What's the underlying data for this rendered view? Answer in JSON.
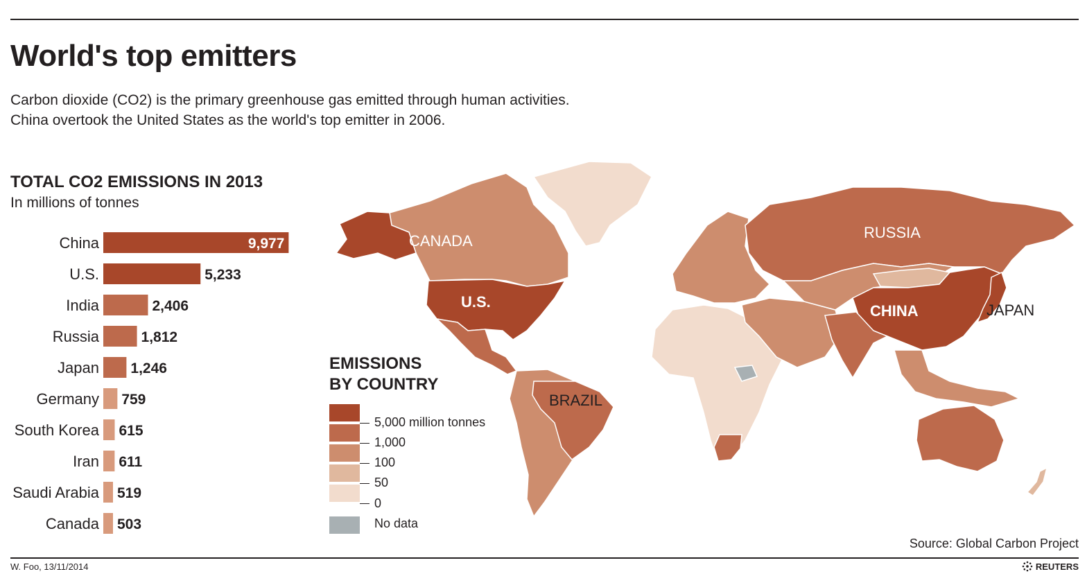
{
  "header": {
    "title": "World's top emitters",
    "subtitle_line1": "Carbon dioxide (CO2) is the primary greenhouse gas emitted through human activities.",
    "subtitle_line2": "China overtook the United States as the world's top emitter in 2006."
  },
  "chart_data": [
    {
      "type": "bar",
      "orientation": "horizontal",
      "title": "TOTAL CO2 EMISSIONS IN 2013",
      "subtitle": "In millions of tonnes",
      "categories": [
        "China",
        "U.S.",
        "India",
        "Russia",
        "Japan",
        "Germany",
        "South Korea",
        "Iran",
        "Saudi Arabia",
        "Canada"
      ],
      "values": [
        9977,
        5233,
        2406,
        1812,
        1246,
        759,
        615,
        611,
        519,
        503
      ],
      "value_labels": [
        "9,977",
        "5,233",
        "2,406",
        "1,812",
        "1,246",
        "759",
        "615",
        "611",
        "519",
        "503"
      ],
      "xlim": [
        0,
        10000
      ],
      "grid": false
    }
  ],
  "map": {
    "legend_title_line1": "EMISSIONS",
    "legend_title_line2": "BY COUNTRY",
    "legend": [
      {
        "label": "5,000 million tonnes",
        "color": "#a8472a"
      },
      {
        "label": "1,000",
        "color": "#bd6a4c"
      },
      {
        "label": "100",
        "color": "#cd8d6e"
      },
      {
        "label": "50",
        "color": "#e0b89e"
      },
      {
        "label": "0",
        "color": "#f2dccd"
      },
      {
        "label": "No data",
        "color": "#a8b0b3"
      }
    ],
    "labels": {
      "canada": "CANADA",
      "us": "U.S.",
      "russia": "RUSSIA",
      "china": "CHINA",
      "japan": "JAPAN",
      "brazil": "BRAZIL"
    }
  },
  "colors": {
    "bar_top": "#a8472a",
    "bar_mid": "#bd6a4c",
    "bar_low": "#cd8d6e",
    "bar_small": "#d89a7c",
    "text": "#231f20"
  },
  "footer": {
    "source": "Source: Global Carbon Project",
    "credit": "W. Foo, 13/11/2014",
    "brand": "REUTERS"
  }
}
